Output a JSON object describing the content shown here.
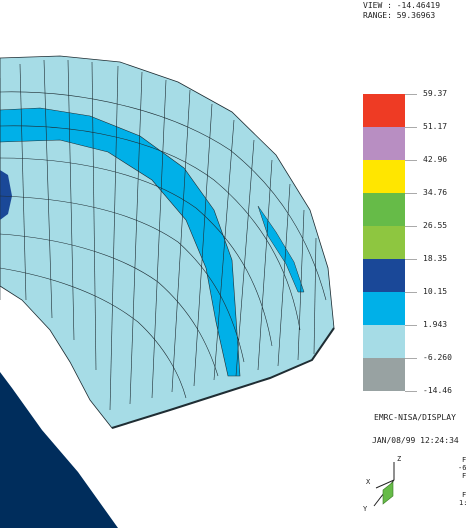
{
  "header": {
    "view_line": "VIEW : -14.46419",
    "range_line": "RANGE: 59.36963"
  },
  "legend": {
    "values": [
      "59.37",
      "51.17",
      "42.96",
      "34.76",
      "26.55",
      "18.35",
      "10.15",
      "1.943",
      "-6.260",
      "-14.46"
    ],
    "colors": [
      "#ee3b24",
      "#b88ec2",
      "#ffe600",
      "#66bb48",
      "#8ec640",
      "#1a4898",
      "#00b0e8",
      "#a6dce6",
      "#98a2a2"
    ]
  },
  "footer": {
    "program": "EMRC-NISA/DISPLAY",
    "timestamp": "JAN/08/99 12:24:34"
  },
  "triad": {
    "z_label": "Z",
    "x_label": "X",
    "y_label": "Y"
  },
  "partial_right": [
    "F",
    "-6",
    "F",
    "F",
    "1:"
  ],
  "colors": {
    "mesh_light": "#a6dce6",
    "mesh_blue": "#00b0e8",
    "mesh_dark": "#1a4898",
    "edge": "#1f2d33",
    "background_region": "#002d5c"
  }
}
